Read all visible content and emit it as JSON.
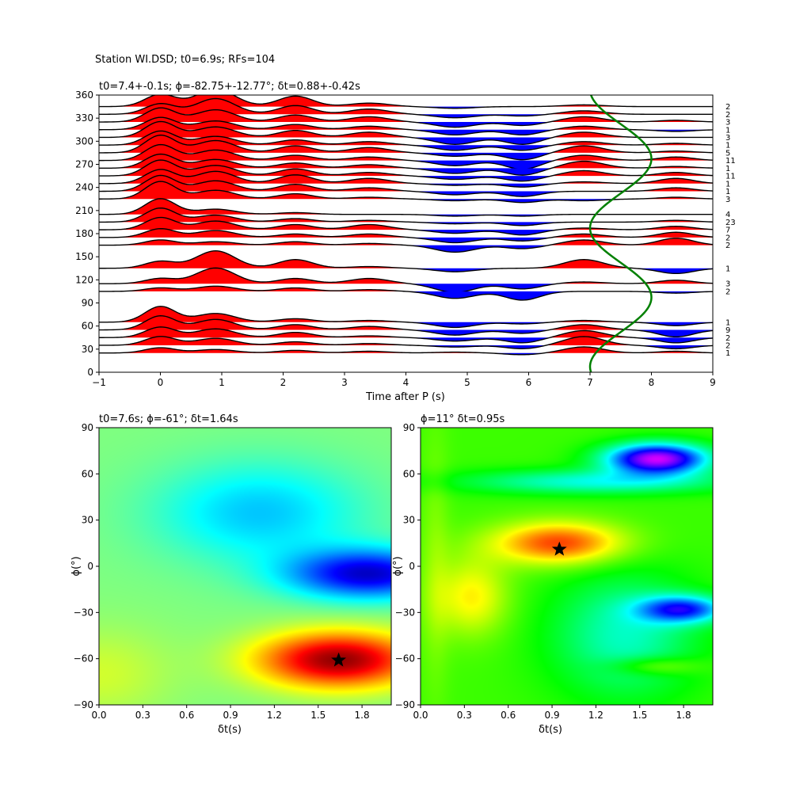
{
  "suptitle": "Station WI.DSD; t0=6.9s; RFs=104",
  "chart_data": [
    {
      "type": "line",
      "title": "t0=7.4+-0.1s; ϕ=-82.75+-12.77°; δt=0.88+-0.42s",
      "xlabel": "Time after P (s)",
      "ylabel": "",
      "xlim": [
        -1,
        9
      ],
      "ylim": [
        0,
        360
      ],
      "xticks": [
        "−1",
        "0",
        "1",
        "2",
        "3",
        "4",
        "5",
        "6",
        "7",
        "8",
        "9"
      ],
      "yticks": [
        "0",
        "30",
        "60",
        "90",
        "120",
        "150",
        "180",
        "210",
        "240",
        "270",
        "300",
        "330",
        "360"
      ],
      "fill_positive_color": "#ff0000",
      "fill_negative_color": "#0000ff",
      "traces": [
        {
          "baz": 25,
          "count": "1",
          "p": [
            0.3,
            0.2,
            0.15,
            0.1,
            0.05,
            -0.1,
            0.35,
            0.1
          ]
        },
        {
          "baz": 35,
          "count": "2",
          "p": [
            0.5,
            0.4,
            0.2,
            0.1,
            -0.1,
            -0.2,
            0.5,
            -0.2
          ]
        },
        {
          "baz": 45,
          "count": "2",
          "p": [
            0.6,
            0.5,
            0.3,
            0.1,
            -0.2,
            -0.3,
            0.4,
            -0.3
          ]
        },
        {
          "baz": 55,
          "count": "9",
          "p": [
            0.8,
            0.6,
            0.3,
            0.2,
            -0.3,
            -0.2,
            0.3,
            -0.4
          ]
        },
        {
          "baz": 65,
          "count": "1",
          "p": [
            0.9,
            0.5,
            0.2,
            0.1,
            -0.3,
            -0.1,
            0.1,
            -0.2
          ]
        },
        {
          "baz": 105,
          "count": "2",
          "p": [
            0.2,
            0.3,
            0.2,
            0.1,
            -0.4,
            -0.5,
            0.0,
            -0.1
          ]
        },
        {
          "baz": 115,
          "count": "3",
          "p": [
            0.3,
            0.9,
            0.3,
            0.3,
            -0.5,
            -0.3,
            0.1,
            0.2
          ]
        },
        {
          "baz": 135,
          "count": "1",
          "p": [
            0.4,
            1.0,
            0.5,
            0.1,
            -0.2,
            0.0,
            0.5,
            -0.3
          ]
        },
        {
          "baz": 165,
          "count": "2",
          "p": [
            0.3,
            0.2,
            0.2,
            0.1,
            -0.4,
            -0.2,
            0.3,
            0.4
          ]
        },
        {
          "baz": 175,
          "count": "2",
          "p": [
            0.5,
            0.4,
            0.2,
            0.2,
            -0.3,
            -0.2,
            0.2,
            0.3
          ]
        },
        {
          "baz": 185,
          "count": "7",
          "p": [
            0.7,
            0.5,
            0.3,
            0.3,
            -0.2,
            -0.3,
            0.1,
            0.2
          ]
        },
        {
          "baz": 195,
          "count": "23",
          "p": [
            0.8,
            0.4,
            0.2,
            0.1,
            -0.1,
            -0.2,
            0.0,
            0.1
          ]
        },
        {
          "baz": 205,
          "count": "4",
          "p": [
            0.9,
            0.3,
            0.1,
            0.0,
            -0.1,
            -0.1,
            0.0,
            0.0
          ]
        },
        {
          "baz": 225,
          "count": "3",
          "p": [
            1.0,
            0.5,
            0.3,
            0.1,
            -0.1,
            -0.2,
            -0.1,
            0.1
          ]
        },
        {
          "baz": 235,
          "count": "1",
          "p": [
            0.9,
            0.6,
            0.4,
            0.2,
            -0.2,
            -0.3,
            0.0,
            0.2
          ]
        },
        {
          "baz": 245,
          "count": "1",
          "p": [
            0.8,
            0.7,
            0.5,
            0.3,
            -0.1,
            -0.2,
            0.1,
            0.3
          ]
        },
        {
          "baz": 255,
          "count": "11",
          "p": [
            0.9,
            0.6,
            0.4,
            0.2,
            -0.2,
            -0.3,
            0.3,
            0.2
          ]
        },
        {
          "baz": 265,
          "count": "1",
          "p": [
            0.8,
            0.5,
            0.3,
            0.2,
            -0.3,
            -0.4,
            0.4,
            0.1
          ]
        },
        {
          "baz": 275,
          "count": "11",
          "p": [
            0.9,
            0.6,
            0.3,
            0.2,
            -0.3,
            -0.5,
            0.3,
            0.2
          ]
        },
        {
          "baz": 285,
          "count": "5",
          "p": [
            1.0,
            0.7,
            0.4,
            0.3,
            -0.2,
            -0.4,
            0.4,
            0.1
          ]
        },
        {
          "baz": 295,
          "count": "1",
          "p": [
            0.8,
            0.5,
            0.3,
            0.2,
            -0.3,
            -0.3,
            0.2,
            0.1
          ]
        },
        {
          "baz": 305,
          "count": "3",
          "p": [
            0.9,
            0.6,
            0.4,
            0.3,
            -0.4,
            -0.4,
            0.3,
            0.0
          ]
        },
        {
          "baz": 315,
          "count": "1",
          "p": [
            0.7,
            0.5,
            0.3,
            0.2,
            -0.3,
            -0.3,
            0.2,
            -0.1
          ]
        },
        {
          "baz": 325,
          "count": "3",
          "p": [
            0.8,
            0.7,
            0.4,
            0.3,
            -0.3,
            -0.2,
            0.3,
            0.1
          ]
        },
        {
          "baz": 335,
          "count": "2",
          "p": [
            0.6,
            0.9,
            0.5,
            0.3,
            -0.2,
            -0.1,
            0.2,
            0.0
          ]
        },
        {
          "baz": 345,
          "count": "2",
          "p": [
            0.7,
            1.0,
            0.6,
            0.2,
            -0.1,
            0.0,
            0.1,
            0.0
          ]
        }
      ],
      "curve": {
        "color": "#008000",
        "center": 7.5,
        "amplitude": 0.5,
        "period_deg": 180,
        "phase_deg": -82.75
      }
    },
    {
      "type": "heatmap",
      "title": "t0=7.6s; ϕ=-61°; δt=1.64s",
      "xlabel": "δt(s)",
      "ylabel": "ϕ(°)",
      "xlim": [
        0,
        2
      ],
      "ylim": [
        -90,
        90
      ],
      "xticks": [
        "0.0",
        "0.3",
        "0.6",
        "0.9",
        "1.2",
        "1.5",
        "1.8"
      ],
      "yticks": [
        "−90",
        "−60",
        "−30",
        "0",
        "30",
        "60",
        "90"
      ],
      "colormap": "jet",
      "marker": {
        "x": 1.64,
        "y": -61
      }
    },
    {
      "type": "heatmap",
      "title": "ϕ=11° δt=0.95s",
      "xlabel": "δt(s)",
      "ylabel": "ϕ(°)",
      "xlim": [
        0,
        2
      ],
      "ylim": [
        -90,
        90
      ],
      "xticks": [
        "0.0",
        "0.3",
        "0.6",
        "0.9",
        "1.2",
        "1.5",
        "1.8"
      ],
      "yticks": [
        "−90",
        "−60",
        "−30",
        "0",
        "30",
        "60",
        "90"
      ],
      "colormap": "hsv",
      "marker": {
        "x": 0.95,
        "y": 11
      }
    }
  ]
}
